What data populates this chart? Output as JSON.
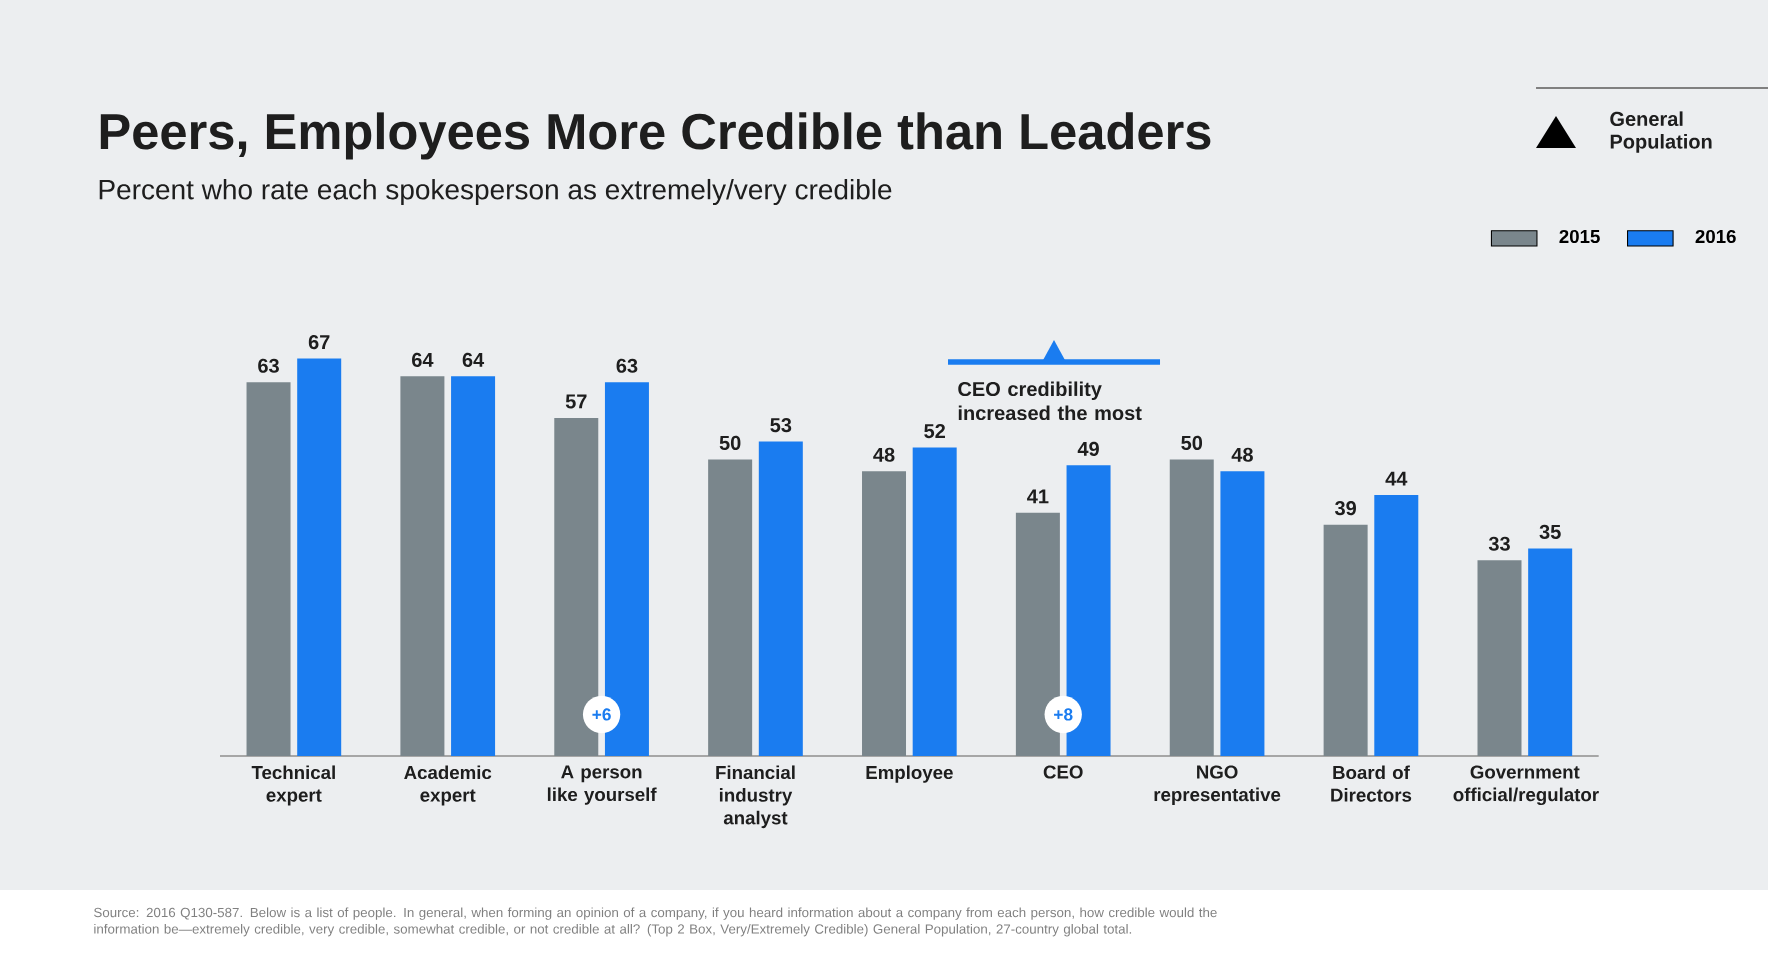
{
  "chart_data": {
    "type": "bar",
    "title": "Peers, Employees More Credible than Leaders",
    "subtitle": "Percent who rate each spokesperson as extremely/very credible",
    "categories": [
      "Technical expert",
      "Academic expert",
      "A person like yourself",
      "Financial industry analyst",
      "Employee",
      "CEO",
      "NGO representative",
      "Board of Directors",
      "Government official/regulator"
    ],
    "series": [
      {
        "name": "2015",
        "color": "#7a868c",
        "values": [
          63,
          64,
          57,
          50,
          48,
          41,
          50,
          39,
          33
        ]
      },
      {
        "name": "2016",
        "color": "#1a7cf0",
        "values": [
          67,
          64,
          63,
          53,
          52,
          49,
          48,
          44,
          35
        ]
      }
    ],
    "data_labels": true,
    "legend": "top right",
    "legend_title": "General Population",
    "annotations": [
      {
        "text": "+6",
        "x": "A person like yourself",
        "y": 7
      },
      {
        "text": "+8",
        "x": "CEO",
        "y": 7
      },
      "CEO credibility increased the most",
      "Source: 2016 Q130-587. Below is a list of people. In general, when forming an opinion of a company, if you heard information about a company from each person, how credible would the information be—extremely credible, very credible, somewhat credible, or not credible at all? (Top 2 Box, Very/Extremely Credible) General Population, 27-country global total."
    ]
  }
}
